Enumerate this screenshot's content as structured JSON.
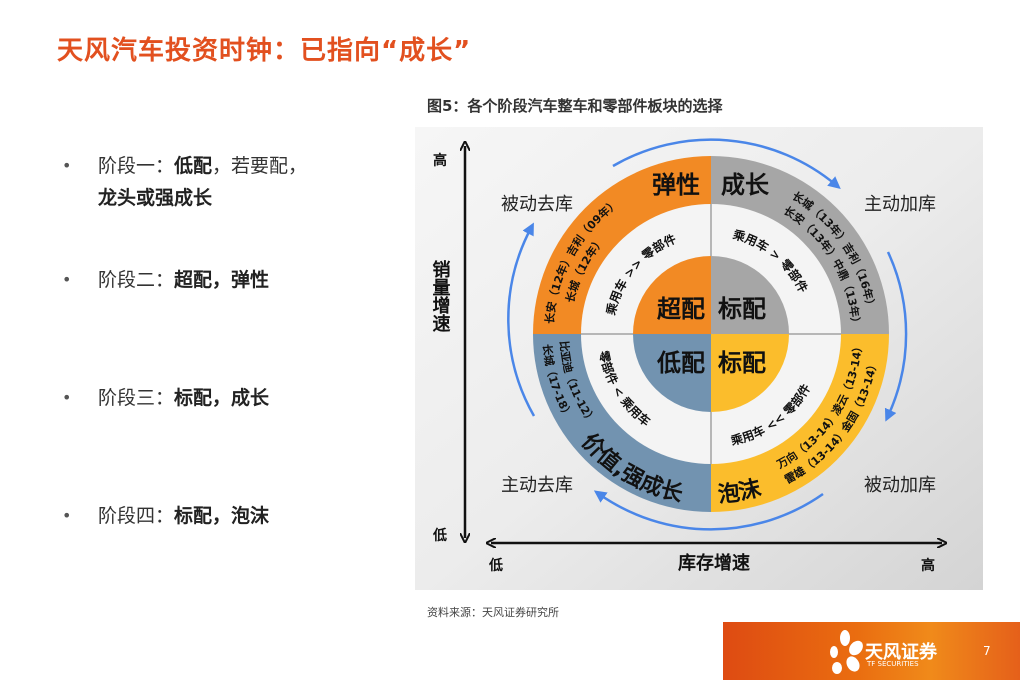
{
  "title": "天风汽车投资时钟：已指向“成长”",
  "bullets": [
    {
      "prefix": "阶段一：",
      "bold": "低配",
      "rest": "，若要配，",
      "bold2": "龙头或强成长"
    },
    {
      "prefix": "阶段二：",
      "bold": "超配，弹性"
    },
    {
      "prefix": "阶段三：",
      "bold": "标配，成长"
    },
    {
      "prefix": "阶段四：",
      "bold": "标配，泡沫"
    }
  ],
  "figure": {
    "title": "图5：各个阶段汽车整车和零部件板块的选择",
    "y_axis": {
      "label": "销量增速",
      "high": "高",
      "low": "低"
    },
    "x_axis": {
      "label": "库存增速",
      "high": "高",
      "low": "低"
    },
    "corners": {
      "top_left": "被动去库",
      "top_right": "主动加库",
      "bottom_left": "主动去库",
      "bottom_right": "被动加库"
    },
    "quadrants": {
      "top_left": {
        "stage": "弹性",
        "allocation": "超配",
        "relation": "乘用车 >> 零部件",
        "stocks_outer": "长安（12年）吉利（09年）",
        "stocks_inner": "长城（12年）",
        "color": "#f28a24"
      },
      "top_right": {
        "stage": "成长",
        "allocation": "标配",
        "relation": "乘用车 > 零部件",
        "stocks_outer": "长城（13年）吉利（16年）",
        "stocks_inner": "长安（13年）中鼎（13年）",
        "color": "#a6a6a6"
      },
      "bottom_left": {
        "stage": "价值,强成长",
        "allocation": "低配",
        "relation": "零部件 < 乘用车",
        "stocks_outer": "长城（17-18）",
        "stocks_inner": "比亚迪（11-12）",
        "color": "#7293b0"
      },
      "bottom_right": {
        "stage": "泡沫",
        "allocation": "标配",
        "relation": "乘用车 << 零部件",
        "stocks_outer": "雷雄（13-14）金固（13-14）",
        "stocks_inner": "万向（13-14）凌云（13-14）",
        "color": "#fbbd2c"
      }
    },
    "arrow_color": "#4a86e8"
  },
  "source": "资料来源：天风证券研究所",
  "footer": {
    "brand": "天风证券",
    "brand_en": "TF SECURITIES",
    "page": "7"
  }
}
